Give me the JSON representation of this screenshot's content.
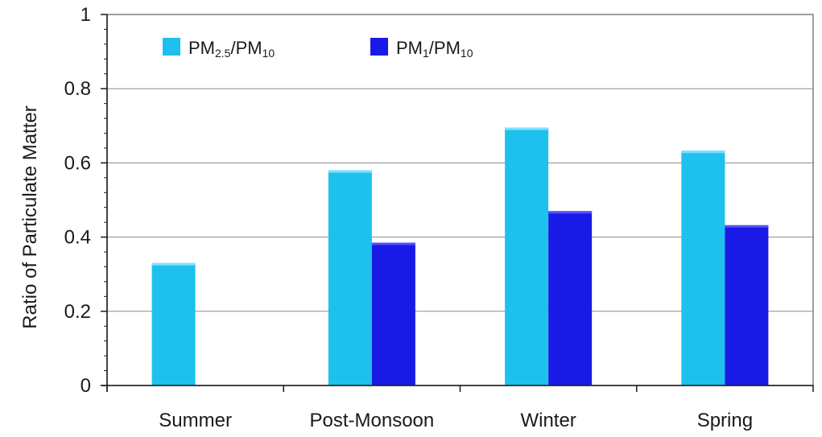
{
  "chart_data": {
    "type": "bar",
    "categories": [
      "Summer",
      "Post-Monsoon",
      "Winter",
      "Spring"
    ],
    "series": [
      {
        "name": "PM2.5/PM10",
        "label_main": "PM",
        "label_sub1": "2.5",
        "label_mid": "/PM",
        "label_sub2": "10",
        "color": "#1ec0ee",
        "values": [
          0.33,
          0.58,
          0.695,
          0.633
        ]
      },
      {
        "name": "PM1/PM10",
        "label_main": "PM",
        "label_sub1": "1",
        "label_mid": "/PM",
        "label_sub2": "10",
        "color": "#1a1ae6",
        "values": [
          null,
          0.385,
          0.47,
          0.432
        ]
      }
    ],
    "ylabel": "Ratio of Particulate Matter",
    "xlabel": "",
    "ylim": [
      0,
      1
    ],
    "yticks": [
      0,
      0.2,
      0.4,
      0.6,
      0.8,
      1
    ],
    "ytick_labels": [
      "0",
      "0.2",
      "0.4",
      "0.6",
      "0.8",
      "1"
    ],
    "grid": true,
    "legend": "top-left"
  }
}
